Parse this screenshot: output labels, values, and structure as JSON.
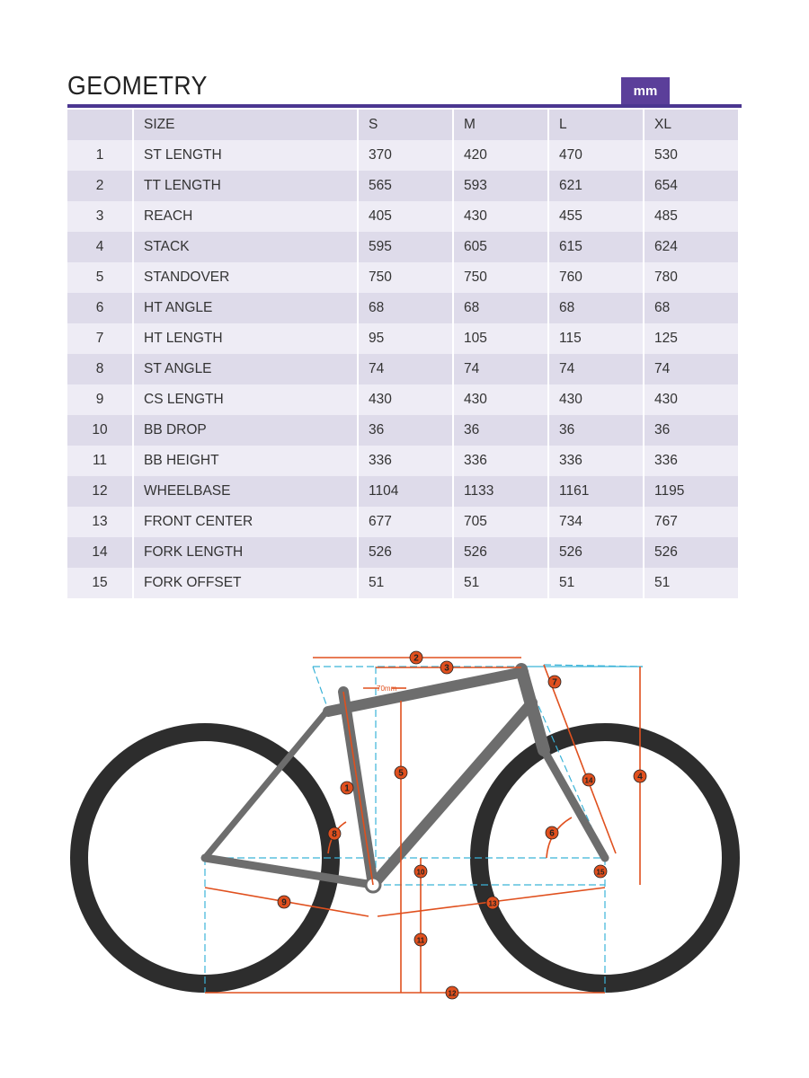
{
  "title": "GEOMETRY",
  "unit": "mm",
  "table": {
    "header": [
      "",
      "SIZE",
      "S",
      "M",
      "L",
      "XL"
    ],
    "rows": [
      [
        "1",
        "ST LENGTH",
        "370",
        "420",
        "470",
        "530"
      ],
      [
        "2",
        "TT LENGTH",
        "565",
        "593",
        "621",
        "654"
      ],
      [
        "3",
        "REACH",
        "405",
        "430",
        "455",
        "485"
      ],
      [
        "4",
        "STACK",
        "595",
        "605",
        "615",
        "624"
      ],
      [
        "5",
        "STANDOVER",
        "750",
        "750",
        "760",
        "780"
      ],
      [
        "6",
        "HT ANGLE",
        "68",
        "68",
        "68",
        "68"
      ],
      [
        "7",
        "HT LENGTH",
        "95",
        "105",
        "115",
        "125"
      ],
      [
        "8",
        "ST ANGLE",
        "74",
        "74",
        "74",
        "74"
      ],
      [
        "9",
        "CS LENGTH",
        "430",
        "430",
        "430",
        "430"
      ],
      [
        "10",
        "BB DROP",
        "36",
        "36",
        "36",
        "36"
      ],
      [
        "11",
        "BB HEIGHT",
        "336",
        "336",
        "336",
        "336"
      ],
      [
        "12",
        "WHEELBASE",
        "1104",
        "1133",
        "1161",
        "1195"
      ],
      [
        "13",
        "FRONT CENTER",
        "677",
        "705",
        "734",
        "767"
      ],
      [
        "14",
        "FORK LENGTH",
        "526",
        "526",
        "526",
        "526"
      ],
      [
        "15",
        "FORK OFFSET",
        "51",
        "51",
        "51",
        "51"
      ]
    ]
  },
  "diagram": {
    "offset_label": "70mm",
    "markers": [
      "1",
      "2",
      "3",
      "4",
      "5",
      "6",
      "7",
      "8",
      "9",
      "10",
      "11",
      "12",
      "13",
      "14",
      "15"
    ],
    "colors": {
      "dimension": "#e0501e",
      "guide": "#3bb3d8",
      "frame": "#6d6d6d",
      "tire": "#2d2d2d",
      "accent": "#5b3f9a"
    }
  }
}
